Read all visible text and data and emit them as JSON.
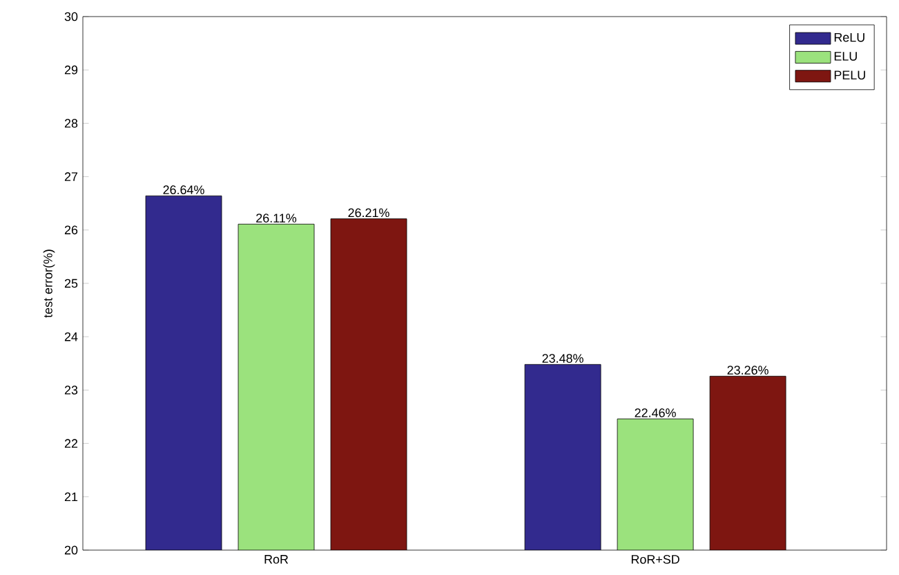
{
  "chart_data": {
    "type": "bar",
    "ylabel": "test error(%)",
    "categories": [
      "RoR",
      "RoR+SD"
    ],
    "series": [
      {
        "name": "ReLU",
        "color": "#322a8e",
        "values": [
          26.64,
          23.48
        ],
        "value_labels": [
          "26.64%",
          "23.48%"
        ]
      },
      {
        "name": "ELU",
        "color": "#9be27d",
        "values": [
          26.11,
          22.46
        ],
        "value_labels": [
          "26.11%",
          "22.46%"
        ]
      },
      {
        "name": "PELU",
        "color": "#7e1611",
        "values": [
          26.21,
          23.26
        ],
        "value_labels": [
          "26.21%",
          "23.26%"
        ]
      }
    ],
    "ylim": [
      20,
      30
    ],
    "yticks": [
      20,
      21,
      22,
      23,
      24,
      25,
      26,
      27,
      28,
      29,
      30
    ],
    "legend": "top right",
    "grid": false
  }
}
